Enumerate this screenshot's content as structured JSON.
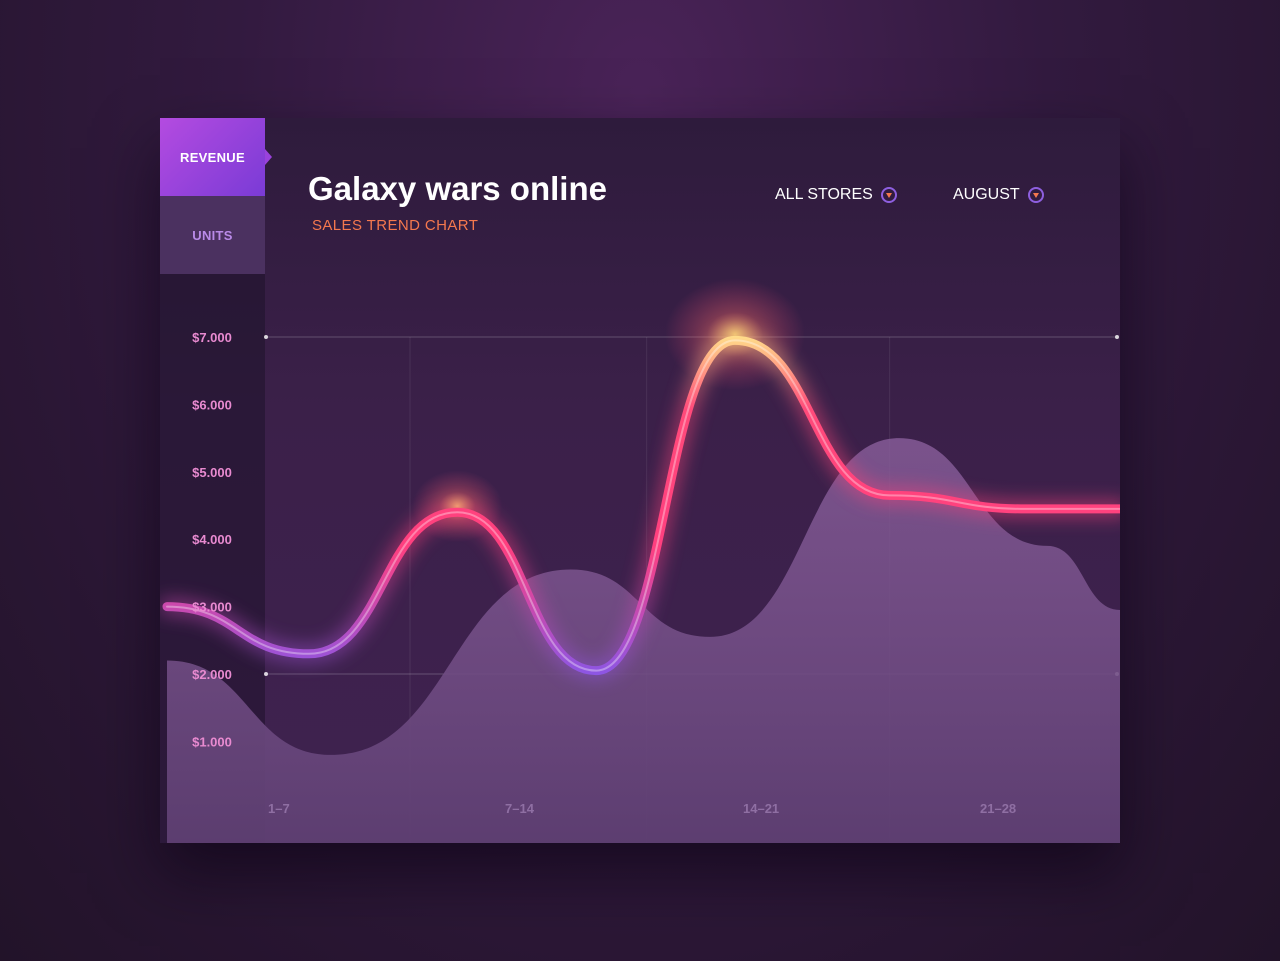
{
  "tabs": {
    "revenue": "REVENUE",
    "units": "UNITS",
    "active": "revenue"
  },
  "header": {
    "title": "Galaxy wars online",
    "subtitle": "SALES TREND CHART"
  },
  "filters": {
    "store": "ALL STORES",
    "month": "AUGUST"
  },
  "chart_data": {
    "type": "line",
    "title": "Galaxy wars online",
    "subtitle": "SALES TREND CHART",
    "ylim": [
      0,
      8000
    ],
    "y_ticks": [
      "$7.000",
      "$6.000",
      "$5.000",
      "$4.000",
      "$3.000",
      "$2.000",
      "$1.000"
    ],
    "y_tick_values": [
      7000,
      6000,
      5000,
      4000,
      3000,
      2000,
      1000
    ],
    "x_ticks": [
      "1–7",
      "7–14",
      "14–21",
      "21–28"
    ],
    "xlim": [
      0,
      28
    ],
    "reference_lines": [
      7000,
      2000
    ],
    "grid": "vertical",
    "series": [
      {
        "kind": "line",
        "x": [
          -2.2,
          2.3,
          7.0,
          11.4,
          15.8,
          20.7,
          25.0,
          28.0
        ],
        "values": [
          3000,
          2300,
          4400,
          2050,
          6950,
          4650,
          4450,
          4450
        ],
        "colors": [
          "#8a56e6",
          "#ff3f7f",
          "#ffd36a"
        ]
      },
      {
        "kind": "area",
        "x": [
          -2.2,
          3.0,
          10.6,
          15.0,
          21.0,
          25.7,
          28.0
        ],
        "values": [
          2200,
          800,
          3550,
          2550,
          5500,
          3900,
          2950
        ],
        "colors": [
          "#6f4a86"
        ]
      }
    ]
  }
}
